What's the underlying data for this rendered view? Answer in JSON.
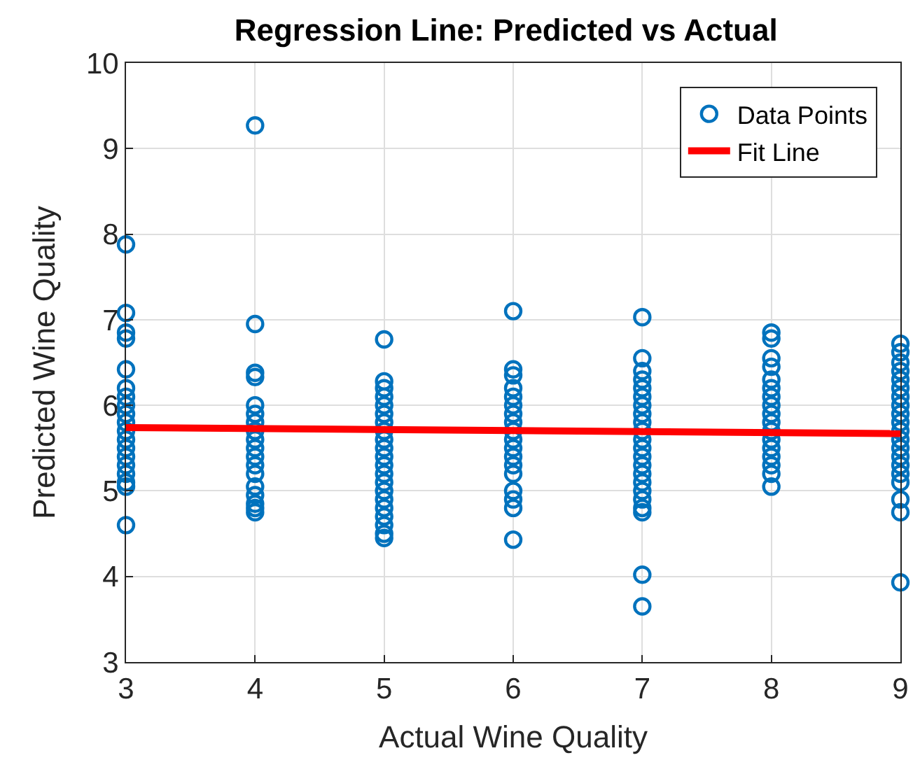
{
  "chart_data": {
    "type": "scatter",
    "title": "Regression Line: Predicted vs Actual",
    "xlabel": "Actual Wine Quality",
    "ylabel": "Predicted Wine Quality",
    "xlim": [
      3,
      9
    ],
    "ylim": [
      3,
      10
    ],
    "xticks": [
      3,
      4,
      5,
      6,
      7,
      8,
      9
    ],
    "yticks": [
      3,
      4,
      5,
      6,
      7,
      8,
      9,
      10
    ],
    "grid": true,
    "legend": "top right",
    "marker": "circle",
    "series": [
      {
        "name": "Data Points",
        "color": "#0072bd",
        "x": [
          3,
          3,
          3,
          3,
          3,
          3,
          3,
          3,
          3,
          3,
          3,
          3,
          3,
          3,
          3,
          3,
          3,
          3,
          3,
          4,
          4,
          4,
          4,
          4,
          4,
          4,
          4,
          4,
          4,
          4,
          4,
          4,
          4,
          4,
          4,
          4,
          4,
          5,
          5,
          5,
          5,
          5,
          5,
          5,
          5,
          5,
          5,
          5,
          5,
          5,
          5,
          5,
          5,
          5,
          5,
          5,
          5,
          5,
          6,
          6,
          6,
          6,
          6,
          6,
          6,
          6,
          6,
          6,
          6,
          6,
          6,
          6,
          6,
          6,
          6,
          6,
          7,
          7,
          7,
          7,
          7,
          7,
          7,
          7,
          7,
          7,
          7,
          7,
          7,
          7,
          7,
          7,
          7,
          7,
          7,
          7,
          7,
          7,
          8,
          8,
          8,
          8,
          8,
          8,
          8,
          8,
          8,
          8,
          8,
          8,
          8,
          8,
          8,
          8,
          8,
          9,
          9,
          9,
          9,
          9,
          9,
          9,
          9,
          9,
          9,
          9,
          9,
          9,
          9,
          9,
          9,
          9,
          9,
          9,
          9
        ],
        "values": [
          7.88,
          7.08,
          6.85,
          6.78,
          6.42,
          6.2,
          6.1,
          6.0,
          5.9,
          5.8,
          5.7,
          5.6,
          5.5,
          5.4,
          5.3,
          5.2,
          5.1,
          5.05,
          4.6,
          9.27,
          6.95,
          6.38,
          6.33,
          6.0,
          5.9,
          5.8,
          5.7,
          5.6,
          5.5,
          5.4,
          5.3,
          5.2,
          5.05,
          4.95,
          4.85,
          4.8,
          4.75,
          6.77,
          6.28,
          6.2,
          6.1,
          6.0,
          5.9,
          5.8,
          5.7,
          5.6,
          5.5,
          5.4,
          5.3,
          5.2,
          5.1,
          5.0,
          4.9,
          4.8,
          4.7,
          4.6,
          4.5,
          4.45,
          7.1,
          6.42,
          6.35,
          6.2,
          6.1,
          6.0,
          5.9,
          5.8,
          5.7,
          5.6,
          5.5,
          5.4,
          5.3,
          5.2,
          5.0,
          4.9,
          4.8,
          4.43,
          7.03,
          6.55,
          6.4,
          6.3,
          6.2,
          6.1,
          6.0,
          5.9,
          5.8,
          5.7,
          5.6,
          5.5,
          5.4,
          5.3,
          5.2,
          5.1,
          5.0,
          4.9,
          4.8,
          4.75,
          4.02,
          3.65,
          6.85,
          6.78,
          6.55,
          6.45,
          6.3,
          6.2,
          6.1,
          6.0,
          5.9,
          5.8,
          5.7,
          5.6,
          5.5,
          5.4,
          5.3,
          5.2,
          5.05,
          6.72,
          6.62,
          6.5,
          6.4,
          6.3,
          6.2,
          6.1,
          6.0,
          5.9,
          5.8,
          5.7,
          5.6,
          5.5,
          5.4,
          5.3,
          5.2,
          5.1,
          4.9,
          4.75,
          3.93
        ]
      },
      {
        "name": "Fit Line",
        "type": "line",
        "color": "#ff0000",
        "x": [
          3,
          9
        ],
        "values": [
          5.74,
          5.67
        ],
        "marker": "none",
        "line_style": "solid"
      }
    ]
  }
}
